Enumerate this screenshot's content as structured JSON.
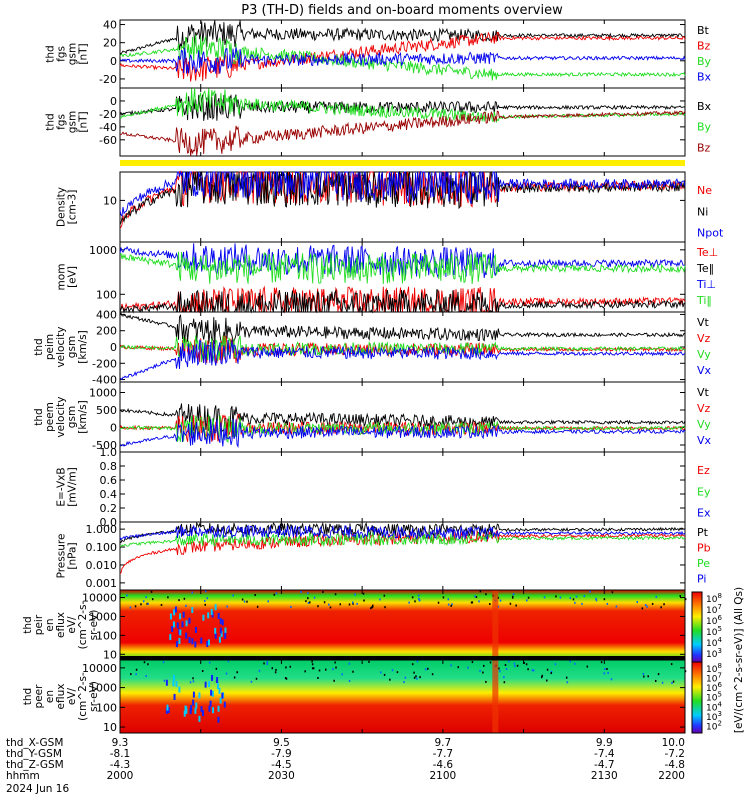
{
  "title": "P3 (TH-D) fields and on-board moments overview",
  "colors": {
    "black": "#000000",
    "red": "#ee0000",
    "green": "#22dd22",
    "blue": "#0000ee",
    "darkred": "#990000",
    "yellow": "#ffee00"
  },
  "chart_data": [
    {
      "type": "line",
      "ylabel": [
        "thd",
        "fgs",
        "gsm",
        "[nT]"
      ],
      "ylim": [
        -30,
        45
      ],
      "yticks": [
        "40",
        "20",
        "0",
        "-20"
      ],
      "series": [
        {
          "name": "Bt",
          "color": "#000000",
          "segments": [
            [
              9.3,
              8,
              8
            ],
            [
              9.39,
              8,
              30
            ],
            [
              9.76,
              30,
              28
            ],
            [
              10.0,
              28,
              28
            ]
          ]
        },
        {
          "name": "Bz",
          "color": "#ee0000",
          "segments": [
            [
              9.3,
              -5,
              -5
            ],
            [
              9.39,
              -5,
              -10
            ],
            [
              9.76,
              -10,
              25
            ],
            [
              10.0,
              25,
              25
            ]
          ]
        },
        {
          "name": "By",
          "color": "#22dd22",
          "segments": [
            [
              9.3,
              5,
              5
            ],
            [
              9.39,
              5,
              15
            ],
            [
              9.76,
              15,
              -15
            ],
            [
              10.0,
              -15,
              -15
            ]
          ]
        },
        {
          "name": "Bx",
          "color": "#0000ee",
          "segments": [
            [
              9.3,
              0,
              0
            ],
            [
              9.39,
              0,
              0
            ],
            [
              9.76,
              0,
              3
            ],
            [
              10.0,
              3,
              3
            ]
          ]
        }
      ]
    },
    {
      "type": "line",
      "ylabel": [
        "thd",
        "fgs",
        "gsm",
        "[nT]"
      ],
      "ylim": [
        -85,
        20
      ],
      "yticks": [
        "0",
        "-20",
        "-40",
        "-60"
      ],
      "series": [
        {
          "name": "Bx",
          "color": "#000000",
          "segments": [
            [
              9.3,
              -20,
              -20
            ],
            [
              9.39,
              -20,
              -10
            ],
            [
              9.76,
              -10,
              -10
            ],
            [
              10.0,
              -10,
              -10
            ]
          ]
        },
        {
          "name": "By",
          "color": "#22dd22",
          "segments": [
            [
              9.3,
              -25,
              -25
            ],
            [
              9.39,
              -25,
              0
            ],
            [
              9.76,
              0,
              -25
            ],
            [
              10.0,
              -25,
              -20
            ]
          ]
        },
        {
          "name": "Bz",
          "color": "#990000",
          "segments": [
            [
              9.3,
              -50,
              -50
            ],
            [
              9.39,
              -50,
              -65
            ],
            [
              9.76,
              -65,
              -25
            ],
            [
              10.0,
              -25,
              -18
            ]
          ]
        }
      ]
    },
    {
      "type": "line",
      "ylabel": [
        "Density",
        "[cm-3]"
      ],
      "ylim": [
        2,
        30
      ],
      "log": true,
      "yticks": [
        "10"
      ],
      "series": [
        {
          "name": "Ne",
          "color": "#ee0000",
          "segments": [
            [
              9.3,
              4,
              4
            ],
            [
              9.39,
              4,
              20
            ],
            [
              9.76,
              20,
              17
            ],
            [
              10.0,
              17,
              18
            ]
          ]
        },
        {
          "name": "Ni",
          "color": "#000000",
          "segments": [
            [
              9.3,
              4,
              4
            ],
            [
              9.39,
              4,
              18
            ],
            [
              9.76,
              18,
              16
            ],
            [
              10.0,
              16,
              17
            ]
          ]
        },
        {
          "name": "Npot",
          "color": "#0000ee",
          "segments": [
            [
              9.3,
              6,
              6
            ],
            [
              9.39,
              6,
              25
            ],
            [
              9.76,
              25,
              19
            ],
            [
              10.0,
              19,
              19
            ]
          ]
        }
      ]
    },
    {
      "type": "line",
      "ylabel": [
        "mom",
        "[eV]"
      ],
      "ylim": [
        40,
        1500
      ],
      "log": true,
      "yticks": [
        "1000",
        "100"
      ],
      "series": [
        {
          "name": "Te⊥",
          "color": "#ee0000",
          "segments": [
            [
              9.3,
              50,
              50
            ],
            [
              9.39,
              50,
              65
            ],
            [
              9.76,
              65,
              68
            ],
            [
              10.0,
              68,
              70
            ]
          ]
        },
        {
          "name": "Te‖",
          "color": "#000000",
          "segments": [
            [
              9.3,
              45,
              45
            ],
            [
              9.39,
              45,
              55
            ],
            [
              9.76,
              55,
              58
            ],
            [
              10.0,
              58,
              60
            ]
          ]
        },
        {
          "name": "Ti⊥",
          "color": "#0000ee",
          "segments": [
            [
              9.3,
              1000,
              1000
            ],
            [
              9.39,
              1000,
              650
            ],
            [
              9.76,
              650,
              500
            ],
            [
              10.0,
              500,
              500
            ]
          ]
        },
        {
          "name": "Ti‖",
          "color": "#22dd22",
          "segments": [
            [
              9.3,
              700,
              700
            ],
            [
              9.39,
              700,
              380
            ],
            [
              9.76,
              380,
              380
            ],
            [
              10.0,
              380,
              380
            ]
          ]
        }
      ]
    },
    {
      "type": "line",
      "ylabel": [
        "thd",
        "peim",
        "velocity",
        "gsm",
        "[km/s]"
      ],
      "ylim": [
        -430,
        430
      ],
      "yticks": [
        "400",
        "200",
        "0",
        "-200",
        "-400"
      ],
      "series": [
        {
          "name": "Vt",
          "color": "#000000",
          "segments": [
            [
              9.3,
              400,
              400
            ],
            [
              9.39,
              400,
              200
            ],
            [
              9.76,
              200,
              150
            ],
            [
              10.0,
              150,
              150
            ]
          ]
        },
        {
          "name": "Vz",
          "color": "#ee0000",
          "segments": [
            [
              9.3,
              0,
              0
            ],
            [
              9.39,
              0,
              -30
            ],
            [
              9.76,
              -30,
              -30
            ],
            [
              10.0,
              -30,
              -30
            ]
          ]
        },
        {
          "name": "Vy",
          "color": "#22dd22",
          "segments": [
            [
              9.3,
              0,
              0
            ],
            [
              9.39,
              0,
              -20
            ],
            [
              9.76,
              -20,
              -20
            ],
            [
              10.0,
              -20,
              -20
            ]
          ]
        },
        {
          "name": "Vx",
          "color": "#0000ee",
          "segments": [
            [
              9.3,
              -400,
              -400
            ],
            [
              9.39,
              -400,
              -60
            ],
            [
              9.76,
              -60,
              -80
            ],
            [
              10.0,
              -80,
              -80
            ]
          ]
        }
      ]
    },
    {
      "type": "line",
      "ylabel": [
        "thd",
        "peem",
        "velocity",
        "gsm",
        "[km/s]"
      ],
      "ylim": [
        -700,
        1300
      ],
      "yticks": [
        "1000",
        "500",
        "0",
        "-500"
      ],
      "series": [
        {
          "name": "Vt",
          "color": "#000000",
          "segments": [
            [
              9.3,
              500,
              500
            ],
            [
              9.39,
              500,
              300
            ],
            [
              9.76,
              300,
              150
            ],
            [
              10.0,
              150,
              150
            ]
          ]
        },
        {
          "name": "Vz",
          "color": "#ee0000",
          "segments": [
            [
              9.3,
              0,
              0
            ],
            [
              9.39,
              0,
              -20
            ],
            [
              9.76,
              -20,
              -20
            ],
            [
              10.0,
              -20,
              -20
            ]
          ]
        },
        {
          "name": "Vy",
          "color": "#22dd22",
          "segments": [
            [
              9.3,
              0,
              0
            ],
            [
              9.39,
              0,
              -30
            ],
            [
              9.76,
              -30,
              -20
            ],
            [
              10.0,
              -20,
              -20
            ]
          ]
        },
        {
          "name": "Vx",
          "color": "#0000ee",
          "segments": [
            [
              9.3,
              -500,
              -500
            ],
            [
              9.39,
              -500,
              -150
            ],
            [
              9.76,
              -150,
              -120
            ],
            [
              10.0,
              -120,
              -120
            ]
          ]
        }
      ]
    },
    {
      "type": "line",
      "ylabel": [
        "E=-VxB",
        "[mV/m]"
      ],
      "ylim": [
        0,
        1
      ],
      "yticks": [
        "1.0",
        "0.8",
        "0.6",
        "0.4",
        "0.2",
        "0.0"
      ],
      "series": [
        {
          "name": "Ez",
          "color": "#ee0000",
          "segments": []
        },
        {
          "name": "Ey",
          "color": "#22dd22",
          "segments": []
        },
        {
          "name": "Ex",
          "color": "#0000ee",
          "segments": []
        }
      ]
    },
    {
      "type": "line",
      "ylabel": [
        "Pressure",
        "[nPa]"
      ],
      "ylim": [
        0.0004,
        2.5
      ],
      "log": true,
      "yticks": [
        "1.000",
        "0.100",
        "0.010",
        "0.001"
      ],
      "series": [
        {
          "name": "Pt",
          "color": "#000000",
          "segments": [
            [
              9.3,
              0.2,
              0.2
            ],
            [
              9.39,
              0.2,
              1.0
            ],
            [
              9.76,
              1.0,
              0.9
            ],
            [
              10.0,
              0.9,
              1.0
            ]
          ]
        },
        {
          "name": "Pb",
          "color": "#ee0000",
          "segments": [
            [
              9.3,
              0.003,
              0.003
            ],
            [
              9.39,
              0.003,
              0.1
            ],
            [
              9.76,
              0.1,
              0.4
            ],
            [
              10.0,
              0.4,
              0.45
            ]
          ]
        },
        {
          "name": "Pe",
          "color": "#22dd22",
          "segments": [
            [
              9.3,
              0.12,
              0.12
            ],
            [
              9.39,
              0.12,
              0.25
            ],
            [
              9.76,
              0.25,
              0.3
            ],
            [
              10.0,
              0.3,
              0.32
            ]
          ]
        },
        {
          "name": "Pi",
          "color": "#0000ee",
          "segments": [
            [
              9.3,
              0.3,
              0.3
            ],
            [
              9.39,
              0.3,
              0.8
            ],
            [
              9.76,
              0.8,
              0.6
            ],
            [
              10.0,
              0.6,
              0.6
            ]
          ]
        }
      ]
    },
    {
      "type": "heatmap",
      "ylabel": [
        "thd",
        "peir",
        "en",
        "eflux",
        "eV/",
        "(cm^2-s-",
        "sr-eV)"
      ],
      "ylim": [
        5,
        25000
      ],
      "log": true,
      "yticks": [
        "10000",
        "1000",
        "100",
        "10"
      ]
    },
    {
      "type": "heatmap",
      "ylabel": [
        "thd",
        "peer",
        "en",
        "eflux",
        "eV/",
        "(cm^2-s-",
        "sr-eV)"
      ],
      "ylim": [
        5,
        25000
      ],
      "log": true,
      "yticks": [
        "10000",
        "1000",
        "100",
        "10"
      ]
    }
  ],
  "colorbar": {
    "tick_labels": [
      "10^8",
      "10^7",
      "10^6",
      "10^5",
      "10^4",
      "10^3",
      "10^2"
    ],
    "label": "[eV/(cm^2-s-sr-eV)] (All Qs)",
    "label2": "[eV/(cm^2-s-sr-eV)] (All Qs)"
  },
  "x_axis": {
    "xlim": [
      9.3,
      10.0
    ],
    "rows": [
      {
        "label": "thd_X-GSM",
        "values": [
          "9.3",
          "9.5",
          "9.7",
          "9.9",
          "10.0"
        ]
      },
      {
        "label": "thd_Y-GSM",
        "values": [
          "-8.1",
          "-7.9",
          "-7.7",
          "-7.4",
          "-7.2"
        ]
      },
      {
        "label": "thd_Z-GSM",
        "values": [
          "-4.3",
          "-4.5",
          "-4.6",
          "-4.7",
          "-4.8"
        ]
      },
      {
        "label": "hhmm",
        "values": [
          "2000",
          "2030",
          "2100",
          "2130",
          "2200"
        ]
      }
    ],
    "date": "2024 Jun 16"
  }
}
